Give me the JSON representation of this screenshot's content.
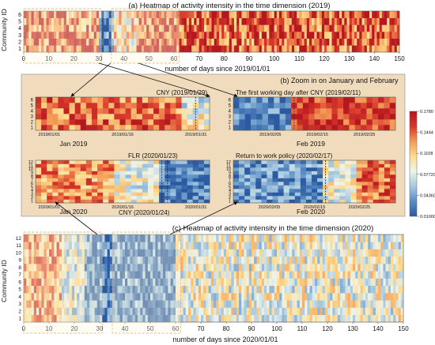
{
  "chart_data": [
    {
      "type": "heatmap",
      "id": "panel_a",
      "title": "(a) Heatmap of activity intensity in the time dimension (2019)",
      "ylabel": "Community ID",
      "xlabel": "number of days since 2019/01/01",
      "x_range": [
        0,
        150
      ],
      "x_ticks": [
        0,
        10,
        20,
        30,
        40,
        50,
        60,
        70,
        80,
        90,
        100,
        110,
        120,
        130,
        140,
        150
      ],
      "y_ticks": [
        1,
        2,
        3,
        4,
        5,
        6
      ],
      "n_rows": 6,
      "highlighted_windows": [
        [
          0,
          31
        ],
        [
          35,
          62
        ]
      ],
      "pattern": [
        {
          "from": 0,
          "to": 30,
          "level": 0.75
        },
        {
          "from": 30,
          "to": 36,
          "level": 0.12
        },
        {
          "from": 36,
          "to": 45,
          "level": 0.55
        },
        {
          "from": 45,
          "to": 150,
          "level": 0.82
        }
      ]
    },
    {
      "type": "heatmap",
      "id": "panel_b1",
      "title": "CNY (2019/01/29)",
      "xlabel": "Jan 2019",
      "x_tick_labels": [
        "2019/01/01",
        "2019/01/16",
        "2019/01/31"
      ],
      "x_tick_days": [
        0,
        15,
        30
      ],
      "y_ticks": [
        1,
        2,
        3,
        4,
        5,
        6
      ],
      "n_rows": 6,
      "n_cols": 31,
      "events": [
        {
          "label": "CNY (2019/01/29)",
          "day": 28
        }
      ],
      "pattern": [
        {
          "from": 0,
          "to": 26,
          "level": 0.78
        },
        {
          "from": 26,
          "to": 31,
          "level": 0.45
        }
      ]
    },
    {
      "type": "heatmap",
      "id": "panel_b2",
      "title": "The first working day after CNY (2019/02/11)",
      "xlabel": "Feb 2019",
      "x_tick_labels": [
        "2019/02/05",
        "2019/02/15",
        "2019/02/25"
      ],
      "x_tick_days": [
        4,
        14,
        24
      ],
      "y_ticks": [
        1,
        2,
        3,
        4,
        5,
        6
      ],
      "n_rows": 6,
      "n_cols": 28,
      "events": [
        {
          "label": "The first working day after CNY (2019/02/11)",
          "day": 10
        }
      ],
      "pattern": [
        {
          "from": 0,
          "to": 10,
          "level": 0.12
        },
        {
          "from": 10,
          "to": 28,
          "level": 0.88
        }
      ]
    },
    {
      "type": "heatmap",
      "id": "panel_b3",
      "title": "FLR (2020/01/23)",
      "xlabel": "Jan 2020",
      "x_tick_labels": [
        "2020/01/01",
        "2020/01/16",
        "2020/01/31"
      ],
      "x_tick_days": [
        0,
        15,
        30
      ],
      "y_ticks": [
        1,
        2,
        3,
        4,
        5,
        6,
        7,
        8,
        9,
        10,
        11,
        12
      ],
      "n_rows": 12,
      "n_cols": 31,
      "events": [
        {
          "label": "FLR (2020/01/23)",
          "day": 22
        },
        {
          "label": "CNY (2020/01/24)",
          "day": 23
        }
      ],
      "pattern": [
        {
          "from": 0,
          "to": 14,
          "level": 0.7
        },
        {
          "from": 14,
          "to": 22,
          "level": 0.45
        },
        {
          "from": 22,
          "to": 31,
          "level": 0.08
        }
      ]
    },
    {
      "type": "heatmap",
      "id": "panel_b4",
      "title": "Return to work policy (2020/02/17)",
      "xlabel": "Feb 2020",
      "x_tick_labels": [
        "2020/02/05",
        "2020/02/15",
        "2020/02/25"
      ],
      "x_tick_days": [
        4,
        14,
        24
      ],
      "y_ticks": [
        1,
        2,
        3,
        4,
        5,
        6,
        7,
        8,
        9,
        10,
        11,
        12
      ],
      "n_rows": 12,
      "n_cols": 29,
      "events": [
        {
          "label": "Return to work policy (2020/02/17)",
          "day": 16
        }
      ],
      "pattern": [
        {
          "from": 0,
          "to": 16,
          "level": 0.15
        },
        {
          "from": 16,
          "to": 22,
          "level": 0.45
        },
        {
          "from": 22,
          "to": 29,
          "level": 0.78
        }
      ]
    },
    {
      "type": "heatmap",
      "id": "panel_c",
      "title": "(c) Heatmap of activity intensity in the time dimension (2020)",
      "ylabel": "Community ID",
      "xlabel": "number of days since 2020/01/01",
      "x_range": [
        0,
        150
      ],
      "x_ticks": [
        0,
        10,
        20,
        30,
        40,
        50,
        60,
        70,
        80,
        90,
        100,
        110,
        120,
        130,
        140,
        150
      ],
      "y_ticks": [
        1,
        2,
        3,
        4,
        5,
        6,
        7,
        8,
        9,
        10,
        11,
        12
      ],
      "n_rows": 12,
      "highlighted_windows": [
        [
          0,
          31
        ],
        [
          35,
          62
        ]
      ],
      "pattern": [
        {
          "from": 0,
          "to": 15,
          "level": 0.68
        },
        {
          "from": 15,
          "to": 24,
          "level": 0.4
        },
        {
          "from": 24,
          "to": 60,
          "level": 0.15
        },
        {
          "from": 60,
          "to": 150,
          "level": 0.45
        }
      ]
    }
  ],
  "section_b_title": "(b) Zoom in on January and February",
  "colorbar": {
    "ticks": [
      "0.1780",
      "0.1444",
      "0.1108",
      "0.07720",
      "0.04360",
      "0.01000"
    ],
    "min": 0.01,
    "max": 0.178
  },
  "colors": {
    "scale": [
      "#2c5aa0",
      "#5a8cc3",
      "#a6c8e0",
      "#eef4ea",
      "#fcdc8e",
      "#f59a57",
      "#d6362a",
      "#b3171f"
    ],
    "zoom_background": "#f0dcbc",
    "highlight_fill": "#fbf5dc"
  }
}
